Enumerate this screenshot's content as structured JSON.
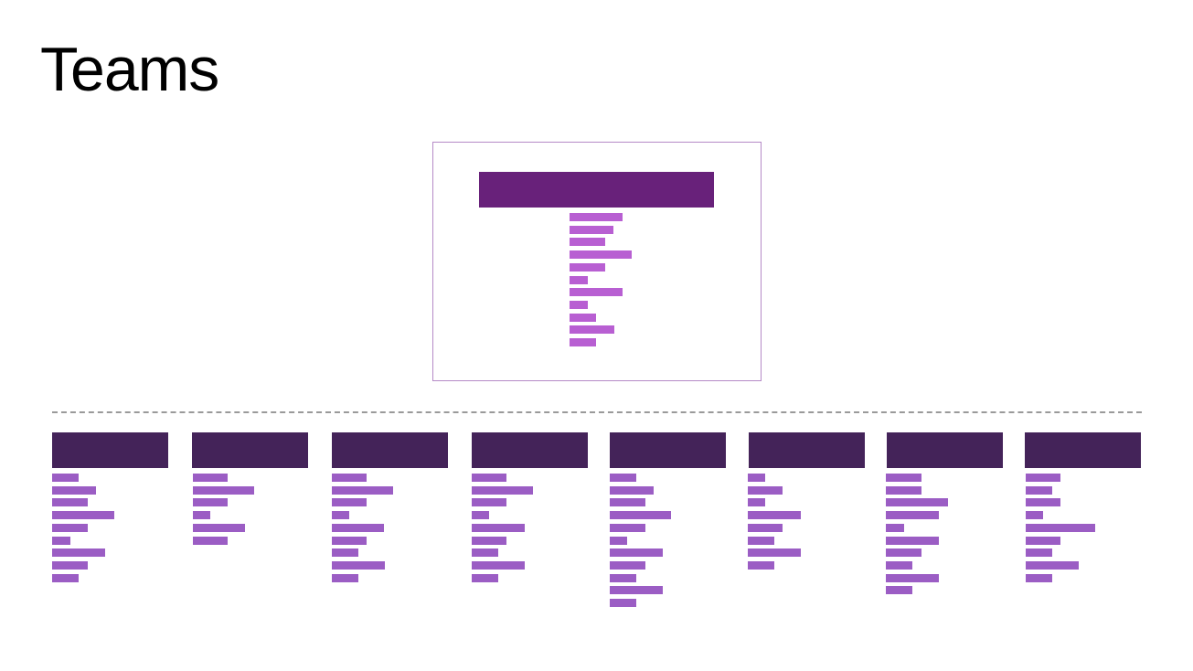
{
  "page": {
    "title": "Teams"
  },
  "colors": {
    "background": "#ffffff",
    "title_text": "#000000",
    "top_frame_border": "#b58ac7",
    "top_header": "#68217a",
    "top_member_bar": "#b85fd2",
    "divider": "#9a9a9a",
    "team_header": "#442359",
    "team_member_bar": "#9b5dc4"
  },
  "leadership": {
    "member_count": 11
  },
  "teams": [
    {
      "member_count": 9
    },
    {
      "member_count": 6
    },
    {
      "member_count": 9
    },
    {
      "member_count": 9
    },
    {
      "member_count": 11
    },
    {
      "member_count": 8
    },
    {
      "member_count": 10
    },
    {
      "member_count": 9
    }
  ]
}
